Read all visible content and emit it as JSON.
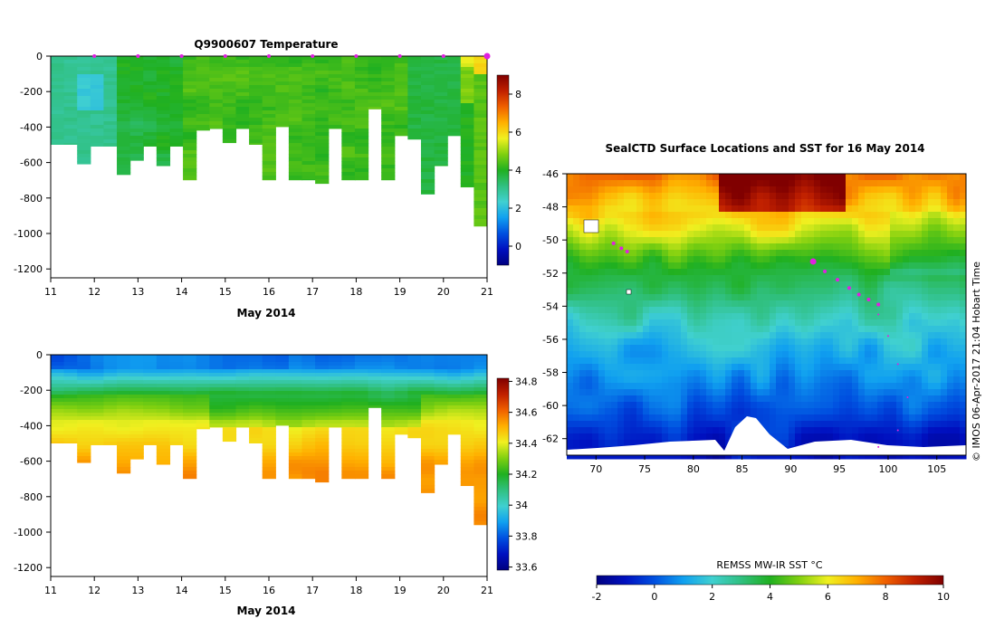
{
  "chart_data": [
    {
      "type": "heatmap",
      "title": "Q9900607  Temperature",
      "xlabel": "May 2014",
      "x_ticks": [
        "11",
        "12",
        "13",
        "14",
        "15",
        "16",
        "17",
        "18",
        "19",
        "20",
        "21"
      ],
      "xlim": [
        11,
        21
      ],
      "y_ticks": [
        "0",
        "-200",
        "-400",
        "-600",
        "-800",
        "-1000",
        "-1200"
      ],
      "ylim": [
        -1250,
        0
      ],
      "colorbar": {
        "min": -1,
        "max": 9,
        "ticks": [
          "0",
          "2",
          "4",
          "6",
          "8"
        ]
      },
      "profile_markers_day": [
        12,
        13,
        14,
        15,
        16,
        17,
        18,
        19,
        20,
        21
      ],
      "profile_max_depth_m": [
        500,
        500,
        610,
        510,
        510,
        670,
        590,
        510,
        620,
        510,
        700,
        420,
        410,
        490,
        410,
        500,
        700,
        400,
        700,
        700,
        720,
        410,
        700,
        700,
        300,
        700,
        450,
        470,
        780,
        620,
        450,
        740,
        960
      ]
    },
    {
      "type": "heatmap",
      "title": "",
      "xlabel": "May 2014",
      "x_ticks": [
        "11",
        "12",
        "13",
        "14",
        "15",
        "16",
        "17",
        "18",
        "19",
        "20",
        "21"
      ],
      "xlim": [
        11,
        21
      ],
      "y_ticks": [
        "0",
        "-200",
        "-400",
        "-600",
        "-800",
        "-1000",
        "-1200"
      ],
      "ylim": [
        -1250,
        0
      ],
      "colorbar": {
        "min": 33.58,
        "max": 34.82,
        "ticks": [
          "33.6",
          "33.8",
          "34",
          "34.2",
          "34.4",
          "34.6",
          "34.8"
        ]
      }
    },
    {
      "type": "heatmap",
      "title": "SealCTD Surface Locations and SST for 16 May 2014",
      "x_ticks": [
        "70",
        "75",
        "80",
        "85",
        "90",
        "95",
        "100",
        "105"
      ],
      "xlim": [
        67,
        108
      ],
      "y_ticks": [
        "-46",
        "-48",
        "-50",
        "-52",
        "-54",
        "-56",
        "-58",
        "-60",
        "-62"
      ],
      "ylim": [
        -63,
        -46
      ],
      "side_label": "© IMOS 06-Apr-2017 21:04 Hobart Time",
      "colorbar": {
        "title": "REMSS MW-IR SST °C",
        "min": -2,
        "max": 10,
        "ticks": [
          "-2",
          "0",
          "2",
          "4",
          "6",
          "8",
          "10"
        ]
      },
      "seal_track": [
        [
          92.3,
          -51.3
        ],
        [
          93.5,
          -51.9
        ],
        [
          94.8,
          -52.4
        ],
        [
          96,
          -52.9
        ],
        [
          97,
          -53.3
        ],
        [
          98,
          -53.6
        ],
        [
          99,
          -53.9
        ]
      ],
      "track_points": [
        [
          71.8,
          -50.2
        ],
        [
          72.6,
          -50.5
        ],
        [
          73.2,
          -50.7
        ]
      ]
    }
  ],
  "colors": {
    "marker": "#e020e0",
    "ramp": [
      "#000080",
      "#0010c0",
      "#0050e0",
      "#10a0f0",
      "#40d0d0",
      "#30c080",
      "#20b020",
      "#80d010",
      "#f0f020",
      "#ffb000",
      "#f06000",
      "#c02000",
      "#800000"
    ]
  }
}
